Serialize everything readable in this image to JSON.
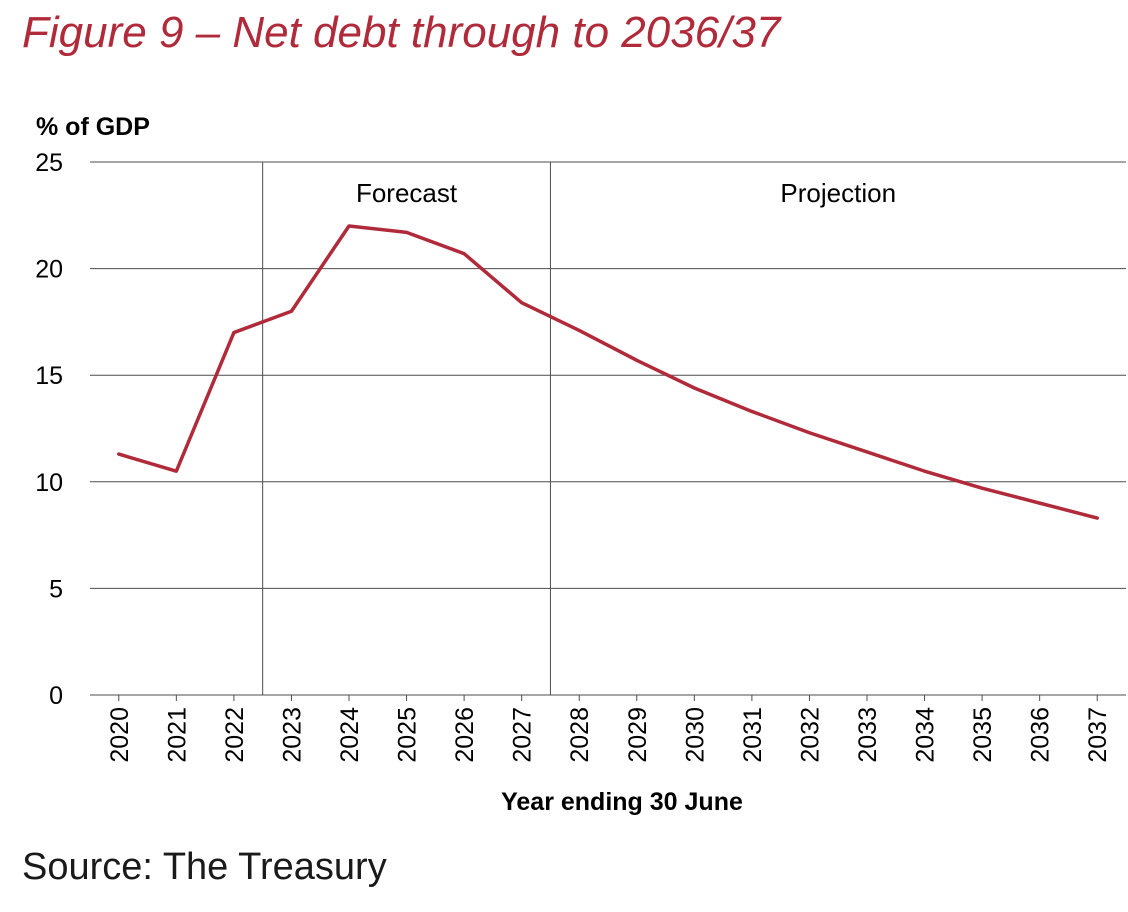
{
  "figure_title": "Figure 9 – Net debt through to 2036/37",
  "source": "Source: The Treasury",
  "colors": {
    "title": "#b02a3a",
    "line": "#b02a3a",
    "grid": "#4d4d4d",
    "text": "#000000"
  },
  "chart_data": {
    "type": "line",
    "title": "",
    "ylabel": "% of GDP",
    "xlabel": "Year ending 30 June",
    "ylim": [
      0,
      25
    ],
    "yticks": [
      0,
      5,
      10,
      15,
      20,
      25
    ],
    "grid": "horizontal",
    "categories": [
      "2020",
      "2021",
      "2022",
      "2023",
      "2024",
      "2025",
      "2026",
      "2027",
      "2028",
      "2029",
      "2030",
      "2031",
      "2032",
      "2033",
      "2034",
      "2035",
      "2036",
      "2037"
    ],
    "series": [
      {
        "values": [
          11.3,
          10.5,
          17.0,
          18.0,
          22.0,
          21.7,
          20.7,
          18.4,
          17.1,
          15.7,
          14.4,
          13.3,
          12.3,
          11.4,
          10.5,
          9.7,
          9.0,
          8.3
        ]
      }
    ],
    "regions": [
      {
        "label": "Forecast",
        "from": "2022",
        "to": "2027"
      },
      {
        "label": "Projection",
        "from": "2027",
        "to": "2037"
      }
    ]
  }
}
